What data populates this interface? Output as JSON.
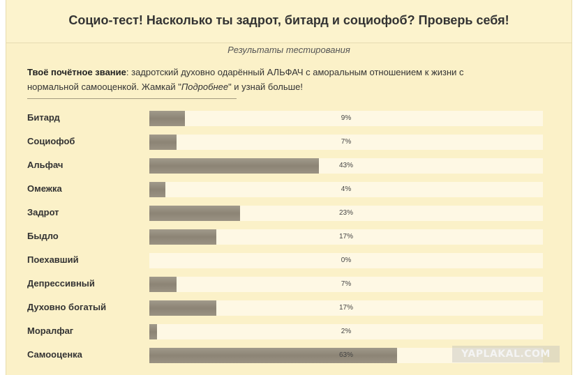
{
  "header": {
    "title": "Социо-тест! Насколько ты задрот, битард и социофоб? Проверь себя!"
  },
  "results": {
    "subtitle": "Результаты тестирования",
    "title_label": "Твоё почётное звание",
    "title_text_1": ": задротский духовно одарённый АЛЬФАЧ с аморальным отношением к жизни с нормальной самооценкой. Жамкай \"",
    "title_link": "Подробнее",
    "title_text_2": "\" и узнай больше!"
  },
  "rows": [
    {
      "label": "Битард",
      "value": 9,
      "pct": "9%"
    },
    {
      "label": "Социофоб",
      "value": 7,
      "pct": "7%"
    },
    {
      "label": "Альфач",
      "value": 43,
      "pct": "43%"
    },
    {
      "label": "Омежка",
      "value": 4,
      "pct": "4%"
    },
    {
      "label": "Задрот",
      "value": 23,
      "pct": "23%"
    },
    {
      "label": "Быдло",
      "value": 17,
      "pct": "17%"
    },
    {
      "label": "Поехавший",
      "value": 0,
      "pct": "0%"
    },
    {
      "label": "Депрессивный",
      "value": 7,
      "pct": "7%"
    },
    {
      "label": "Духовно богатый",
      "value": 17,
      "pct": "17%"
    },
    {
      "label": "Моралфаг",
      "value": 2,
      "pct": "2%"
    },
    {
      "label": "Самооценка",
      "value": 63,
      "pct": "63%"
    }
  ],
  "watermark": "YAPLAKAL.COM"
}
